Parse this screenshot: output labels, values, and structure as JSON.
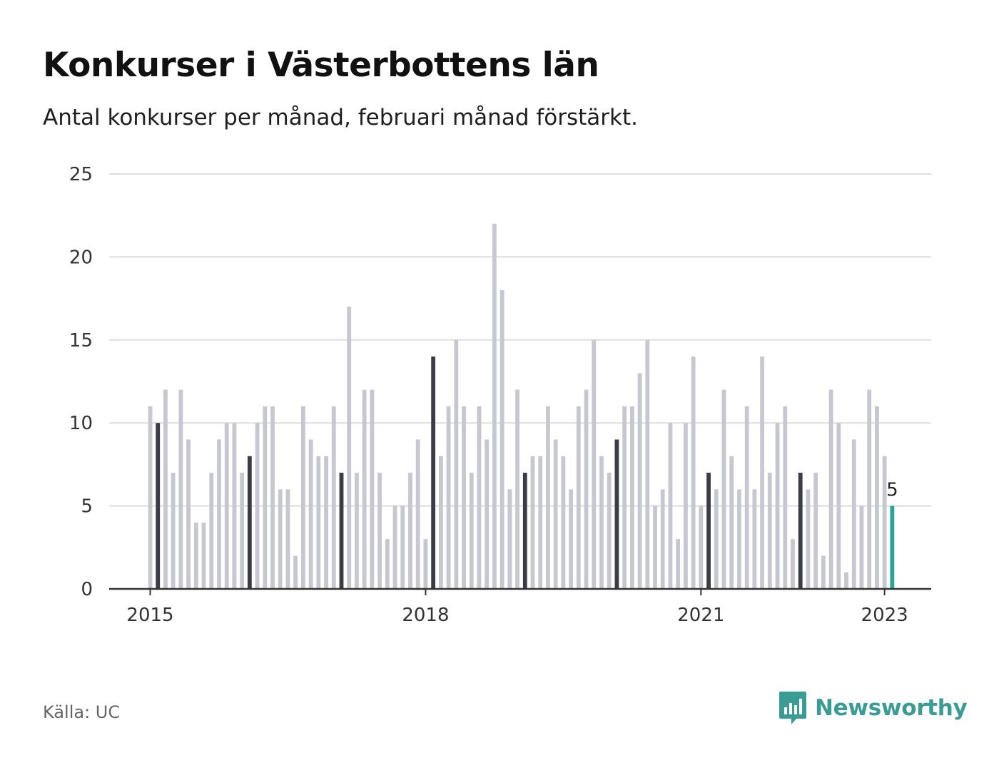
{
  "header": {
    "title": "Konkurser i Västerbottens län",
    "subtitle": "Antal konkurser per månad, februari månad förstärkt."
  },
  "footer": {
    "source": "Källa: UC",
    "brand": "Newsworthy"
  },
  "colors": {
    "bar": "#c7c7d1",
    "february": "#3c3c48",
    "latest": "#2aa39a",
    "grid": "#dedede",
    "axis": "#333333",
    "brand": "#3a9c95"
  },
  "chart_data": {
    "type": "bar",
    "title": "Konkurser i Västerbottens län",
    "subtitle": "Antal konkurser per månad, februari månad förstärkt.",
    "xlabel": "",
    "ylabel": "",
    "ylim": [
      0,
      25
    ],
    "yticks": [
      0,
      5,
      10,
      15,
      20,
      25
    ],
    "xtick_labels": [
      "2015",
      "2018",
      "2021",
      "2023"
    ],
    "grid": true,
    "start": "2015-01",
    "end": "2023-02",
    "highlight": "februari",
    "latest_label": "5",
    "values": [
      11,
      10,
      12,
      7,
      12,
      9,
      4,
      4,
      7,
      9,
      10,
      10,
      7,
      8,
      10,
      11,
      11,
      6,
      6,
      2,
      11,
      9,
      8,
      8,
      11,
      7,
      17,
      7,
      12,
      12,
      7,
      3,
      5,
      5,
      7,
      9,
      3,
      14,
      8,
      11,
      15,
      11,
      7,
      11,
      9,
      22,
      18,
      6,
      12,
      7,
      8,
      8,
      11,
      9,
      8,
      6,
      11,
      12,
      15,
      8,
      7,
      9,
      11,
      11,
      13,
      15,
      5,
      6,
      10,
      3,
      10,
      14,
      5,
      7,
      6,
      12,
      8,
      6,
      11,
      6,
      14,
      7,
      10,
      11,
      3,
      7,
      6,
      7,
      2,
      12,
      10,
      1,
      9,
      5,
      12,
      11,
      8,
      5
    ]
  }
}
